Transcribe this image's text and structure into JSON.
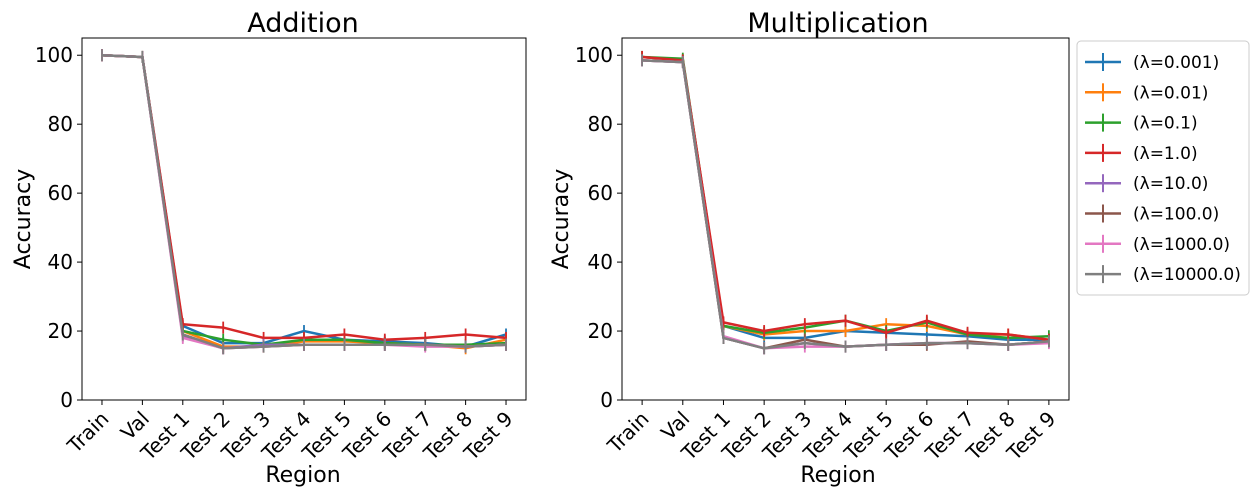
{
  "chart_data": [
    {
      "type": "line",
      "title": "Addition",
      "xlabel": "Region",
      "ylabel": "Accuracy",
      "ylim": [
        0,
        105
      ],
      "yticks": [
        "0",
        "20",
        "40",
        "60",
        "80",
        "100"
      ],
      "categories": [
        "Train",
        "Val",
        "Test 1",
        "Test 2",
        "Test 3",
        "Test 4",
        "Test 5",
        "Test 6",
        "Test 7",
        "Test 8",
        "Test 9"
      ],
      "grid": false,
      "series": [
        {
          "name": "(λ=0.001)",
          "color": "#1f77b4",
          "values": [
            100,
            99.5,
            21.5,
            16.5,
            16.5,
            20,
            17.5,
            17,
            16.5,
            15.5,
            19
          ]
        },
        {
          "name": "(λ=0.01)",
          "color": "#ff7f0e",
          "values": [
            100,
            99.5,
            20,
            15.5,
            15.5,
            17,
            17,
            16.5,
            16,
            15,
            17.5
          ]
        },
        {
          "name": "(λ=0.1)",
          "color": "#2ca02c",
          "values": [
            100,
            99.5,
            20,
            17.5,
            16,
            17.5,
            17.5,
            16.5,
            16,
            16,
            16.5
          ]
        },
        {
          "name": "(λ=1.0)",
          "color": "#d62728",
          "values": [
            100,
            99.5,
            22,
            21,
            18,
            18,
            19,
            17.5,
            18,
            19,
            18
          ]
        },
        {
          "name": "(λ=10.0)",
          "color": "#9467bd",
          "values": [
            100,
            99.5,
            18.5,
            15,
            16,
            16,
            16,
            16,
            16,
            15.5,
            16
          ]
        },
        {
          "name": "(λ=100.0)",
          "color": "#8c564b",
          "values": [
            100,
            99.5,
            19,
            15,
            15.5,
            16,
            16,
            16,
            16,
            15.5,
            16
          ]
        },
        {
          "name": "(λ=1000.0)",
          "color": "#e377c2",
          "values": [
            100,
            99.5,
            18,
            15,
            15.5,
            16,
            16,
            16,
            15.5,
            15.5,
            16
          ]
        },
        {
          "name": "(λ=10000.0)",
          "color": "#7f7f7f",
          "values": [
            100,
            99.5,
            19,
            15,
            15.5,
            16,
            16,
            16,
            16,
            15.5,
            16
          ]
        }
      ]
    },
    {
      "type": "line",
      "title": "Multiplication",
      "xlabel": "Region",
      "ylabel": "Accuracy",
      "ylim": [
        0,
        105
      ],
      "yticks": [
        "0",
        "20",
        "40",
        "60",
        "80",
        "100"
      ],
      "categories": [
        "Train",
        "Val",
        "Test 1",
        "Test 2",
        "Test 3",
        "Test 4",
        "Test 5",
        "Test 6",
        "Test 7",
        "Test 8",
        "Test 9"
      ],
      "grid": false,
      "series": [
        {
          "name": "(λ=0.001)",
          "color": "#1f77b4",
          "values": [
            99.5,
            98.5,
            21.5,
            18,
            18,
            20,
            19.5,
            19,
            18.5,
            17.5,
            17.5
          ]
        },
        {
          "name": "(λ=0.01)",
          "color": "#ff7f0e",
          "values": [
            99.5,
            98.5,
            21.5,
            19,
            20,
            20,
            22,
            21.5,
            19,
            19,
            17.5
          ]
        },
        {
          "name": "(λ=0.1)",
          "color": "#2ca02c",
          "values": [
            99.5,
            99,
            21.5,
            19.5,
            21,
            23,
            20,
            22.5,
            19,
            18,
            18.5
          ]
        },
        {
          "name": "(λ=1.0)",
          "color": "#d62728",
          "values": [
            99.5,
            98.5,
            22.5,
            20,
            22,
            23,
            19.5,
            23,
            19.5,
            19,
            17.5
          ]
        },
        {
          "name": "(λ=10.0)",
          "color": "#9467bd",
          "values": [
            98.5,
            98,
            18,
            15,
            16.5,
            15.5,
            16,
            16.5,
            16.5,
            16,
            17
          ]
        },
        {
          "name": "(λ=100.0)",
          "color": "#8c564b",
          "values": [
            98.5,
            98,
            18,
            15,
            17.5,
            15.5,
            16,
            16,
            17,
            16,
            17
          ]
        },
        {
          "name": "(λ=1000.0)",
          "color": "#e377c2",
          "values": [
            98.5,
            98,
            18.5,
            15,
            15.5,
            15.5,
            16,
            16.5,
            16.5,
            16,
            16.5
          ]
        },
        {
          "name": "(λ=10000.0)",
          "color": "#7f7f7f",
          "values": [
            98.5,
            98,
            18,
            15,
            16.5,
            15.5,
            16,
            16.5,
            16.5,
            16,
            17
          ]
        }
      ]
    }
  ],
  "legend": {
    "placement": "right of second chart",
    "entries": [
      "(λ=0.001)",
      "(λ=0.01)",
      "(λ=0.1)",
      "(λ=1.0)",
      "(λ=10.0)",
      "(λ=100.0)",
      "(λ=1000.0)",
      "(λ=10000.0)"
    ]
  }
}
